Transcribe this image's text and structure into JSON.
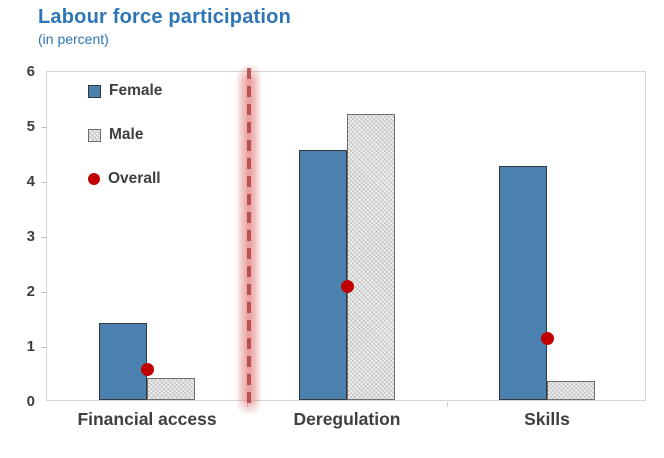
{
  "header": {
    "title": "Labour force participation",
    "subtitle": "(in percent)"
  },
  "legend": [
    {
      "label": "Female",
      "swatch": "female"
    },
    {
      "label": "Male",
      "swatch": "male"
    },
    {
      "label": "Overall",
      "swatch": "overall"
    }
  ],
  "colors": {
    "title_blue": "#2E75B6",
    "bar_female": "#4B81AF",
    "bar_male_fill": "#F1F1F1",
    "overall_dot": "#C00000",
    "highlight_line": "#C0504D",
    "axis_border": "#D6D6D6",
    "text_dark": "#3F3F3F"
  },
  "chart_data": {
    "type": "bar",
    "title": "Labour force participation",
    "subtitle": "(in percent)",
    "categories": [
      "Financial access",
      "Deregulation",
      "Skills"
    ],
    "series": [
      {
        "name": "Female",
        "type": "bar",
        "values": [
          1.4,
          4.55,
          4.25
        ],
        "color": "#4B81AF"
      },
      {
        "name": "Male",
        "type": "bar",
        "values": [
          0.4,
          5.2,
          0.35
        ],
        "color": "#F1F1F1",
        "pattern": "diagonal-hatch"
      },
      {
        "name": "Overall",
        "type": "scatter",
        "values": [
          0.6,
          2.1,
          1.15
        ],
        "color": "#C00000"
      }
    ],
    "xlabel": "",
    "ylabel": "",
    "ylim": [
      0,
      6
    ],
    "yticks": [
      0,
      1,
      2,
      3,
      4,
      5,
      6
    ],
    "grid": false,
    "legend_position": "upper-left-inside",
    "annotation": {
      "type": "dashed-vertical-highlight-line",
      "between": [
        "Financial access",
        "Deregulation"
      ],
      "color": "#C0504D"
    }
  }
}
